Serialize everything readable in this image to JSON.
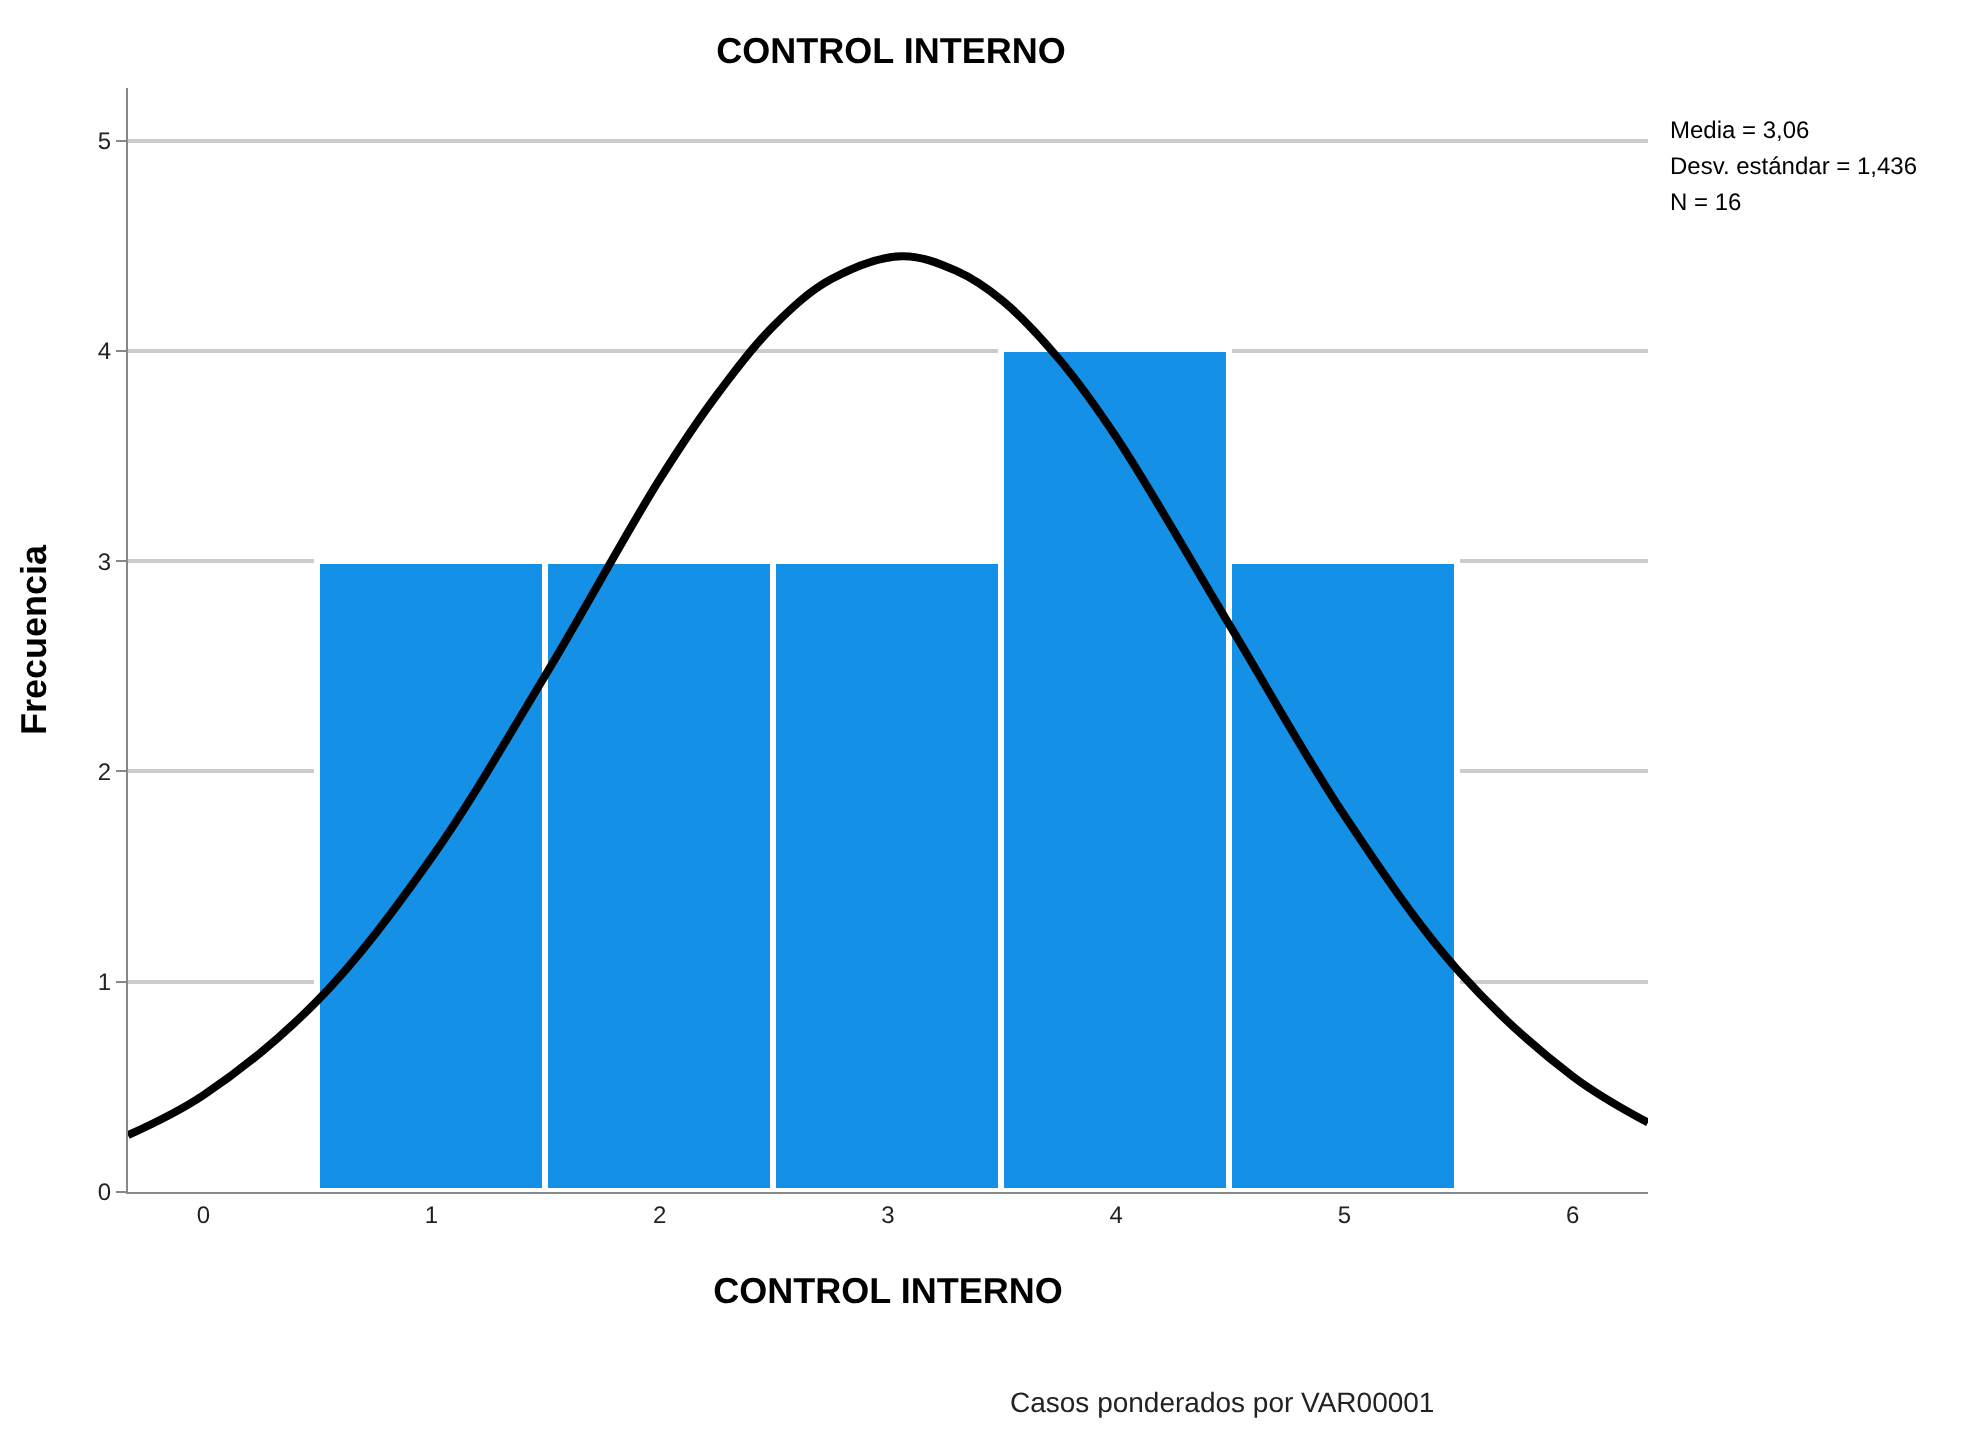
{
  "chart_data": {
    "type": "histogram",
    "title": "CONTROL INTERNO",
    "xlabel": "CONTROL INTERNO",
    "ylabel": "Frecuencia",
    "series": [
      {
        "bins": [
          0.5,
          1.5,
          2.5,
          3.5,
          4.5,
          5.5
        ],
        "values": [
          3,
          3,
          3,
          4,
          3
        ],
        "color": "#1490e6"
      },
      {
        "type": "line",
        "color": "#000000",
        "x": [
          -0.33,
          0,
          0.5,
          1,
          1.5,
          2,
          2.25,
          2.5,
          2.75,
          3.06,
          3.3,
          3.5,
          3.75,
          4,
          4.5,
          5,
          5.5,
          6,
          6.33
        ],
        "values": [
          0.27,
          0.46,
          0.91,
          1.59,
          2.46,
          3.39,
          3.79,
          4.12,
          4.34,
          4.45,
          4.38,
          4.24,
          3.96,
          3.59,
          2.69,
          1.79,
          1.05,
          0.55,
          0.33
        ]
      }
    ],
    "xlim": [
      -0.33,
      6.33
    ],
    "xticks": [
      0,
      1,
      2,
      3,
      4,
      5,
      6
    ],
    "ylim": [
      0,
      5.25
    ],
    "yticks": [
      0,
      1,
      2,
      3,
      4,
      5
    ],
    "grid": "y",
    "annotations": [
      "Media = 3,06",
      "Desv. estándar = 1,436",
      "N = 16",
      "Casos ponderados por VAR00001"
    ]
  }
}
